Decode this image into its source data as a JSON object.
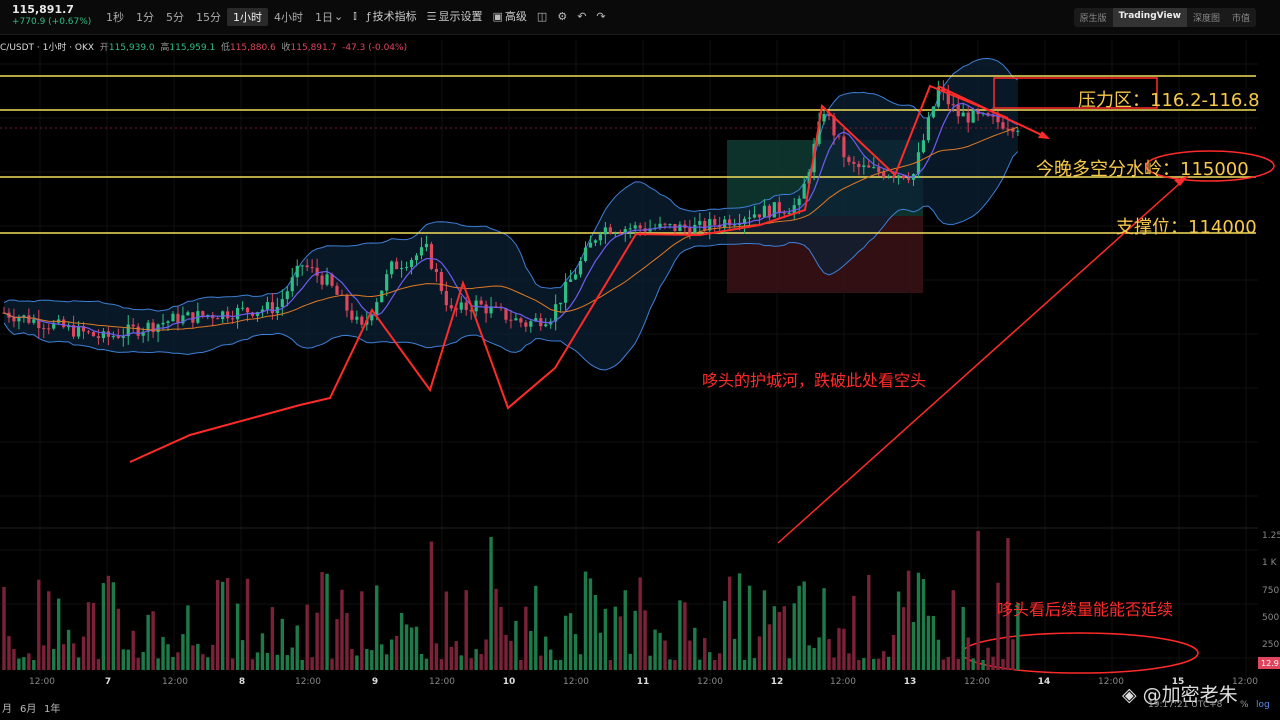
{
  "toolbar": {
    "price": "115,891.7",
    "change": "+770.9 (+0.67%)",
    "intervals": [
      "1秒",
      "1分",
      "5分",
      "15分",
      "1小时",
      "4小时",
      "1日"
    ],
    "active_interval": 4,
    "tools": {
      "indicators": "技术指标",
      "display": "显示设置",
      "advanced": "高级"
    },
    "views": [
      "原生版",
      "TradingView",
      "深度图",
      "市值"
    ],
    "active_view": 1
  },
  "info": {
    "symbol": "C/USDT · 1小时 · OKX",
    "open_label": "开",
    "open": "115,939.0",
    "high_label": "高",
    "high": "115,959.1",
    "low_label": "低",
    "low": "115,880.6",
    "close_label": "收",
    "close": "115,891.7",
    "delta": "-47.3 (-0.04%)"
  },
  "annotations": {
    "resistance": "压力区：116.2-116.8",
    "pivot": "今晚多空分水岭：115000",
    "support": "支撑位：114000",
    "moat": "哆头的护城河，跌破此处看空头",
    "volume_note": "哆头看后续量能能否延续"
  },
  "chart_data": {
    "type": "candlestick",
    "symbol": "C/USDT",
    "interval": "1小时",
    "exchange": "OKX",
    "x_tick_labels": [
      "12:00",
      "7",
      "12:00",
      "8",
      "12:00",
      "9",
      "12:00",
      "10",
      "12:00",
      "11",
      "12:00",
      "12",
      "12:00",
      "13",
      "12:00",
      "14",
      "12:00",
      "15",
      "12:00"
    ],
    "horizontal_levels": [
      116800,
      116200,
      115000,
      114000
    ],
    "volume_axis_labels": [
      "1.25",
      "1 K",
      "750",
      "500",
      "250"
    ],
    "volume_last_label": "12.9",
    "colors": {
      "up": "#2ebd85",
      "down": "#e0455e",
      "level": "#f3dd5a",
      "annotation_red": "#ff2a2a",
      "annotation_gold": "#f7c94a",
      "band": "#3e7fd6",
      "ma_fast": "#6f5cf0",
      "ma_slow": "#e07a26"
    }
  },
  "bottom": {
    "ranges": [
      "月",
      "6月",
      "1年"
    ],
    "utc": "19:17:21 UTC+8",
    "pct": "%",
    "log": "log"
  },
  "watermark": "@加密老朱"
}
